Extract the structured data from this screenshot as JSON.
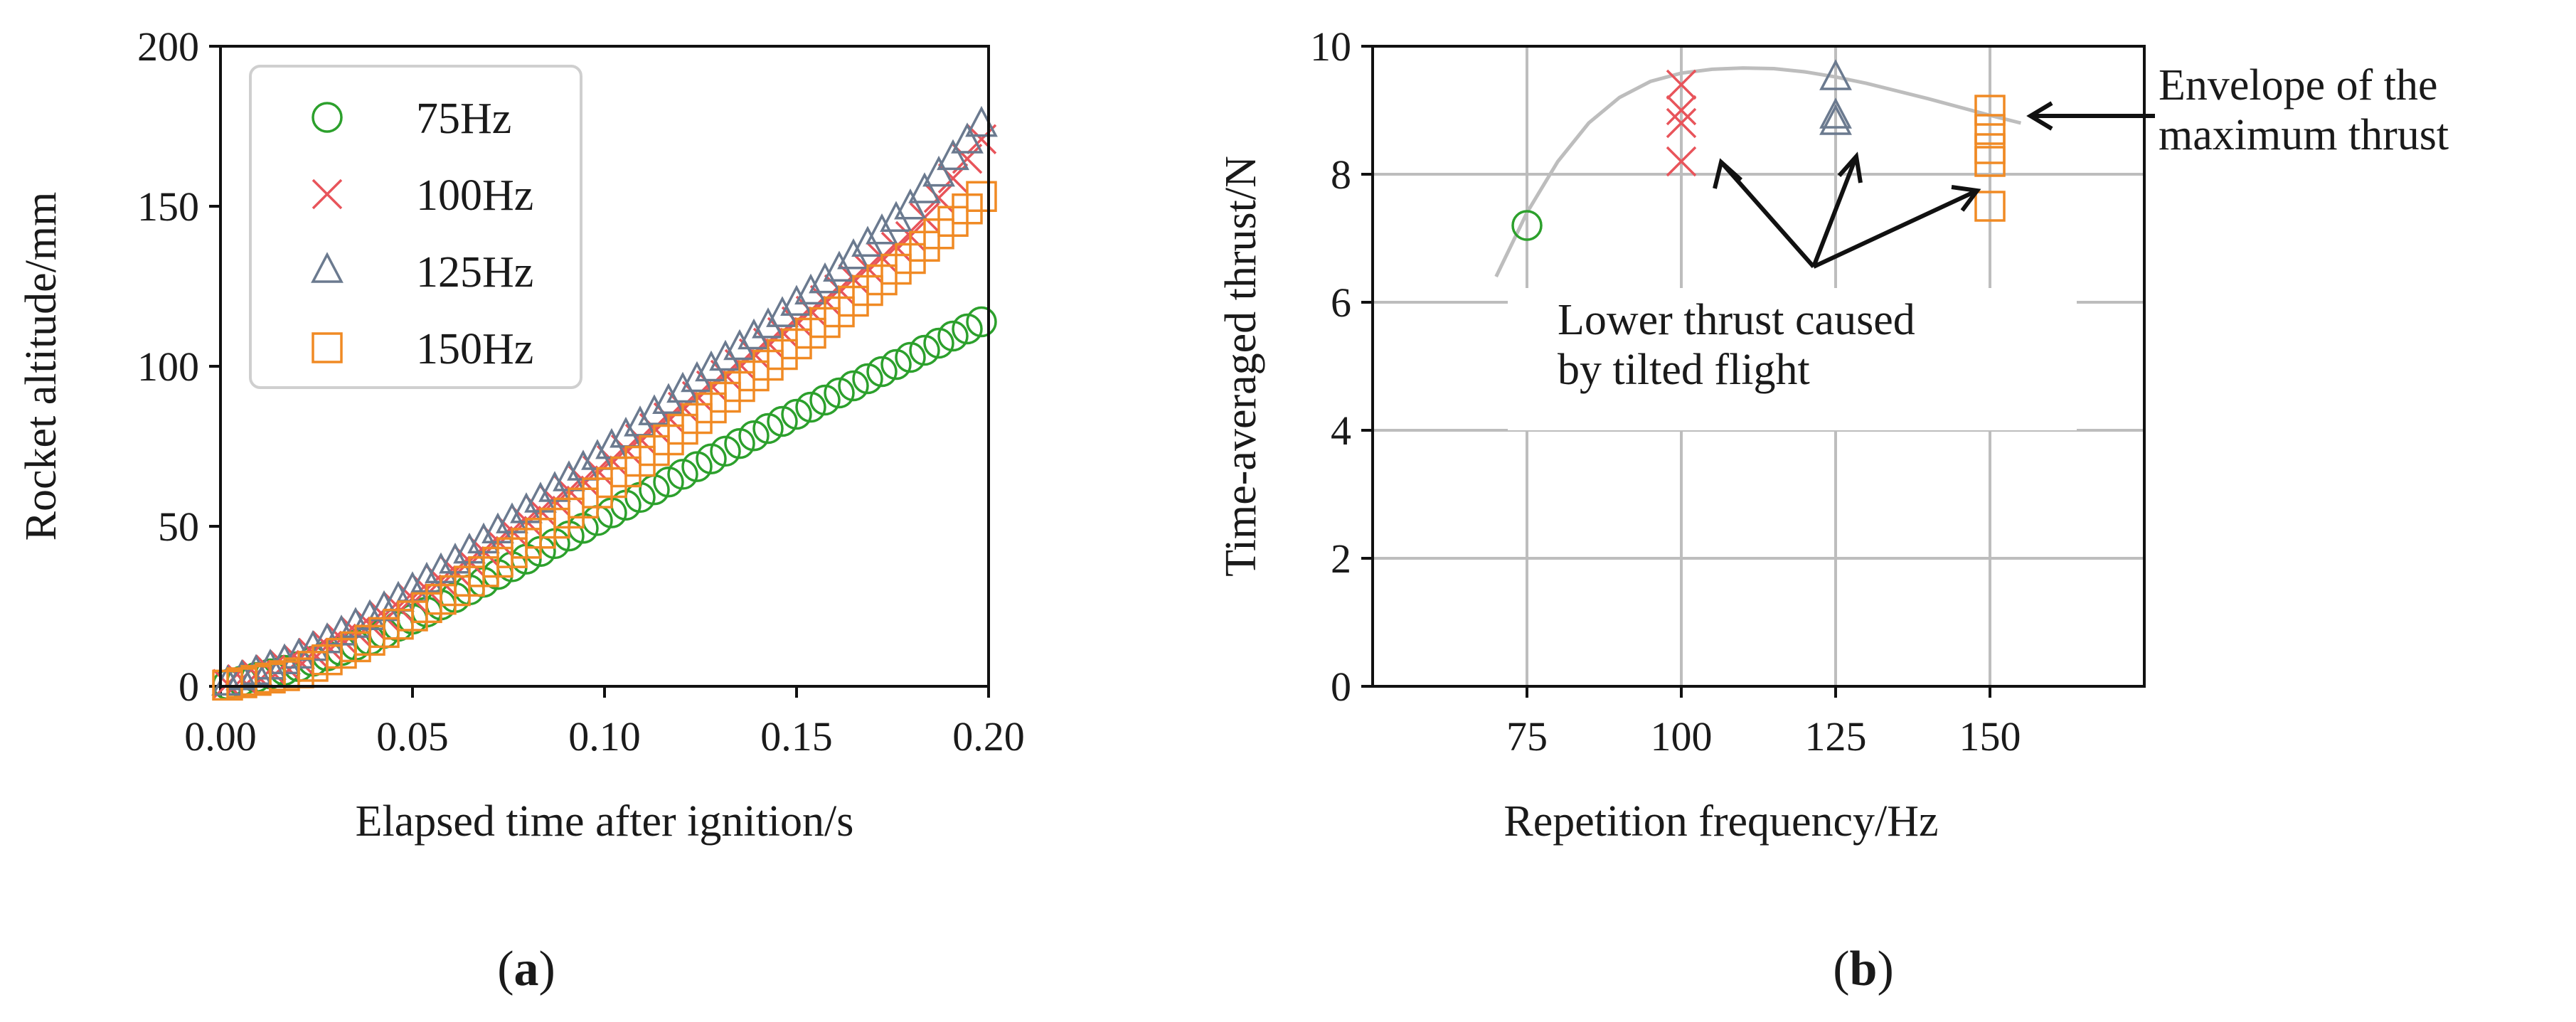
{
  "chart_data": [
    {
      "panel": "(a)",
      "type": "scatter",
      "title": "",
      "xlabel": "Elapsed time after ignition/s",
      "ylabel": "Rocket altitude/mm",
      "xlim": [
        0.0,
        0.2
      ],
      "ylim": [
        0,
        200
      ],
      "xticks": [
        "0.00",
        "0.05",
        "0.10",
        "0.15",
        "0.20"
      ],
      "yticks": [
        "0",
        "50",
        "100",
        "150",
        "200"
      ],
      "grid": false,
      "legend_position": "top-left",
      "series": [
        {
          "name": "75Hz",
          "marker": "circle",
          "color": "#2ca02c",
          "x": [
            0.0,
            0.02,
            0.04,
            0.06,
            0.08,
            0.1,
            0.12,
            0.14,
            0.16,
            0.18,
            0.2
          ],
          "y": [
            0,
            6,
            15,
            27,
            40,
            53,
            66,
            79,
            91,
            103,
            115
          ]
        },
        {
          "name": "100Hz",
          "marker": "x",
          "color": "#e8545a",
          "x": [
            0.0,
            0.02,
            0.04,
            0.06,
            0.08,
            0.1,
            0.12,
            0.14,
            0.16,
            0.18,
            0.2
          ],
          "y": [
            0,
            8,
            20,
            35,
            52,
            69,
            87,
            105,
            123,
            141,
            174
          ]
        },
        {
          "name": "125Hz",
          "marker": "triangle",
          "color": "#6b7a8f",
          "x": [
            0.0,
            0.02,
            0.04,
            0.06,
            0.08,
            0.1,
            0.12,
            0.14,
            0.16,
            0.18,
            0.2
          ],
          "y": [
            0,
            9,
            22,
            38,
            55,
            73,
            92,
            110,
            129,
            150,
            178
          ]
        },
        {
          "name": "150Hz",
          "marker": "square",
          "color": "#f08a24",
          "x": [
            0.0,
            0.02,
            0.04,
            0.06,
            0.08,
            0.1,
            0.12,
            0.14,
            0.16,
            0.18,
            0.2
          ],
          "y": [
            0,
            4,
            15,
            29,
            45,
            62,
            80,
            98,
            116,
            134,
            155
          ]
        }
      ]
    },
    {
      "panel": "(b)",
      "type": "scatter",
      "title": "",
      "xlabel": "Repetition frequency/Hz",
      "ylabel": "Time-averaged thrust/N",
      "xlim": [
        50,
        175
      ],
      "ylim": [
        0,
        10
      ],
      "xticks": [
        "75",
        "100",
        "125",
        "150"
      ],
      "yticks": [
        "0",
        "2",
        "4",
        "6",
        "8",
        "10"
      ],
      "grid": true,
      "series": [
        {
          "name": "75Hz",
          "marker": "circle",
          "color": "#2ca02c",
          "x": [
            75
          ],
          "y": [
            7.2
          ]
        },
        {
          "name": "100Hz",
          "marker": "x",
          "color": "#e8545a",
          "x": [
            100,
            100,
            100,
            100
          ],
          "y": [
            9.4,
            9.0,
            8.8,
            8.2
          ]
        },
        {
          "name": "125Hz",
          "marker": "triangle",
          "color": "#6b7a8f",
          "x": [
            125,
            125,
            125
          ],
          "y": [
            9.5,
            8.9,
            8.8
          ]
        },
        {
          "name": "150Hz",
          "marker": "square",
          "color": "#f08a24",
          "x": [
            150,
            150,
            150,
            150,
            150
          ],
          "y": [
            9.0,
            8.7,
            8.4,
            8.2,
            7.5
          ]
        }
      ],
      "envelope": {
        "name": "Envelope of the maximum thrust",
        "color": "#bdbdbd",
        "x": [
          70,
          75,
          80,
          85,
          90,
          95,
          100,
          105,
          110,
          115,
          120,
          125,
          130,
          135,
          140,
          145,
          150,
          155
        ],
        "y": [
          6.4,
          7.4,
          8.2,
          8.8,
          9.2,
          9.45,
          9.58,
          9.64,
          9.66,
          9.65,
          9.6,
          9.52,
          9.42,
          9.3,
          9.18,
          9.05,
          8.92,
          8.8
        ]
      },
      "annotations": [
        {
          "id": "envelope-note",
          "lines": [
            "Envelope of the",
            "maximum thrust"
          ]
        },
        {
          "id": "tilted-note",
          "lines": [
            "Lower thrust caused",
            "by tilted flight"
          ]
        }
      ]
    }
  ]
}
